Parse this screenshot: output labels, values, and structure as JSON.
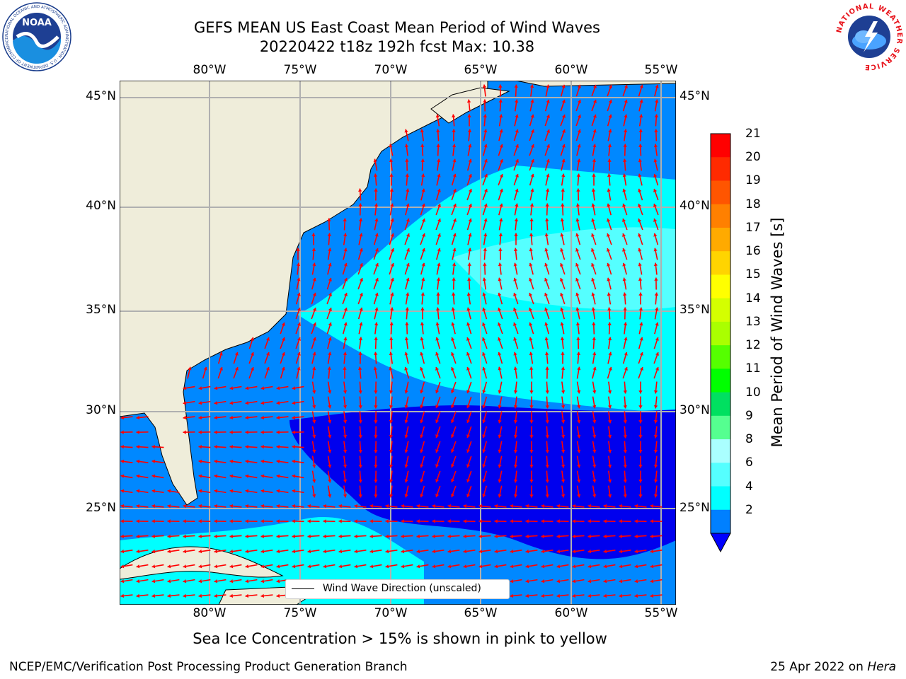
{
  "title": {
    "line1": "GEFS MEAN US East Coast Mean Period of Wind Waves",
    "line2": "20220422 t18z 192h fcst   Max: 10.38"
  },
  "map": {
    "lon_labels": [
      "80°W",
      "75°W",
      "70°W",
      "65°W",
      "60°W",
      "55°W"
    ],
    "lat_labels": [
      "45°N",
      "40°N",
      "35°N",
      "30°N",
      "25°N"
    ],
    "land_color": "#efedda",
    "ocean_color": "#00c8ff",
    "arrow_color": "#ff0000",
    "grid_color": "#b0b0b0"
  },
  "legend": {
    "label": "Wind Wave Direction (unscaled)"
  },
  "colorbar": {
    "title": "Mean Period of Wind Waves [s]",
    "ticks": [
      "21",
      "20",
      "19",
      "18",
      "17",
      "16",
      "15",
      "14",
      "13",
      "12",
      "11",
      "10",
      "9",
      "8",
      "6",
      "4",
      "2"
    ],
    "colors": [
      "#ff0000",
      "#ff2a00",
      "#ff5500",
      "#ff8000",
      "#ffaa00",
      "#ffd400",
      "#ffff00",
      "#d4ff00",
      "#aaff00",
      "#55ff00",
      "#00ff00",
      "#00e060",
      "#55ff90",
      "#aaffff",
      "#55ffff",
      "#00ffff",
      "#0080ff"
    ],
    "extend_color": "#0000ff"
  },
  "note": "Sea Ice Concentration > 15% is shown in pink to yellow",
  "footer": {
    "left": "NCEP/EMC/Verification Post Processing Product Generation Branch",
    "right_date": "25 Apr 2022 on ",
    "right_machine": "Hera"
  },
  "logos": {
    "noaa_text": "NOAA",
    "noaa_ring": "NATIONAL OCEANIC AND ATMOSPHERIC ADMINISTRATION · U.S. DEPARTMENT OF COMMERCE",
    "nws_ring": "NATIONAL WEATHER SERVICE"
  }
}
